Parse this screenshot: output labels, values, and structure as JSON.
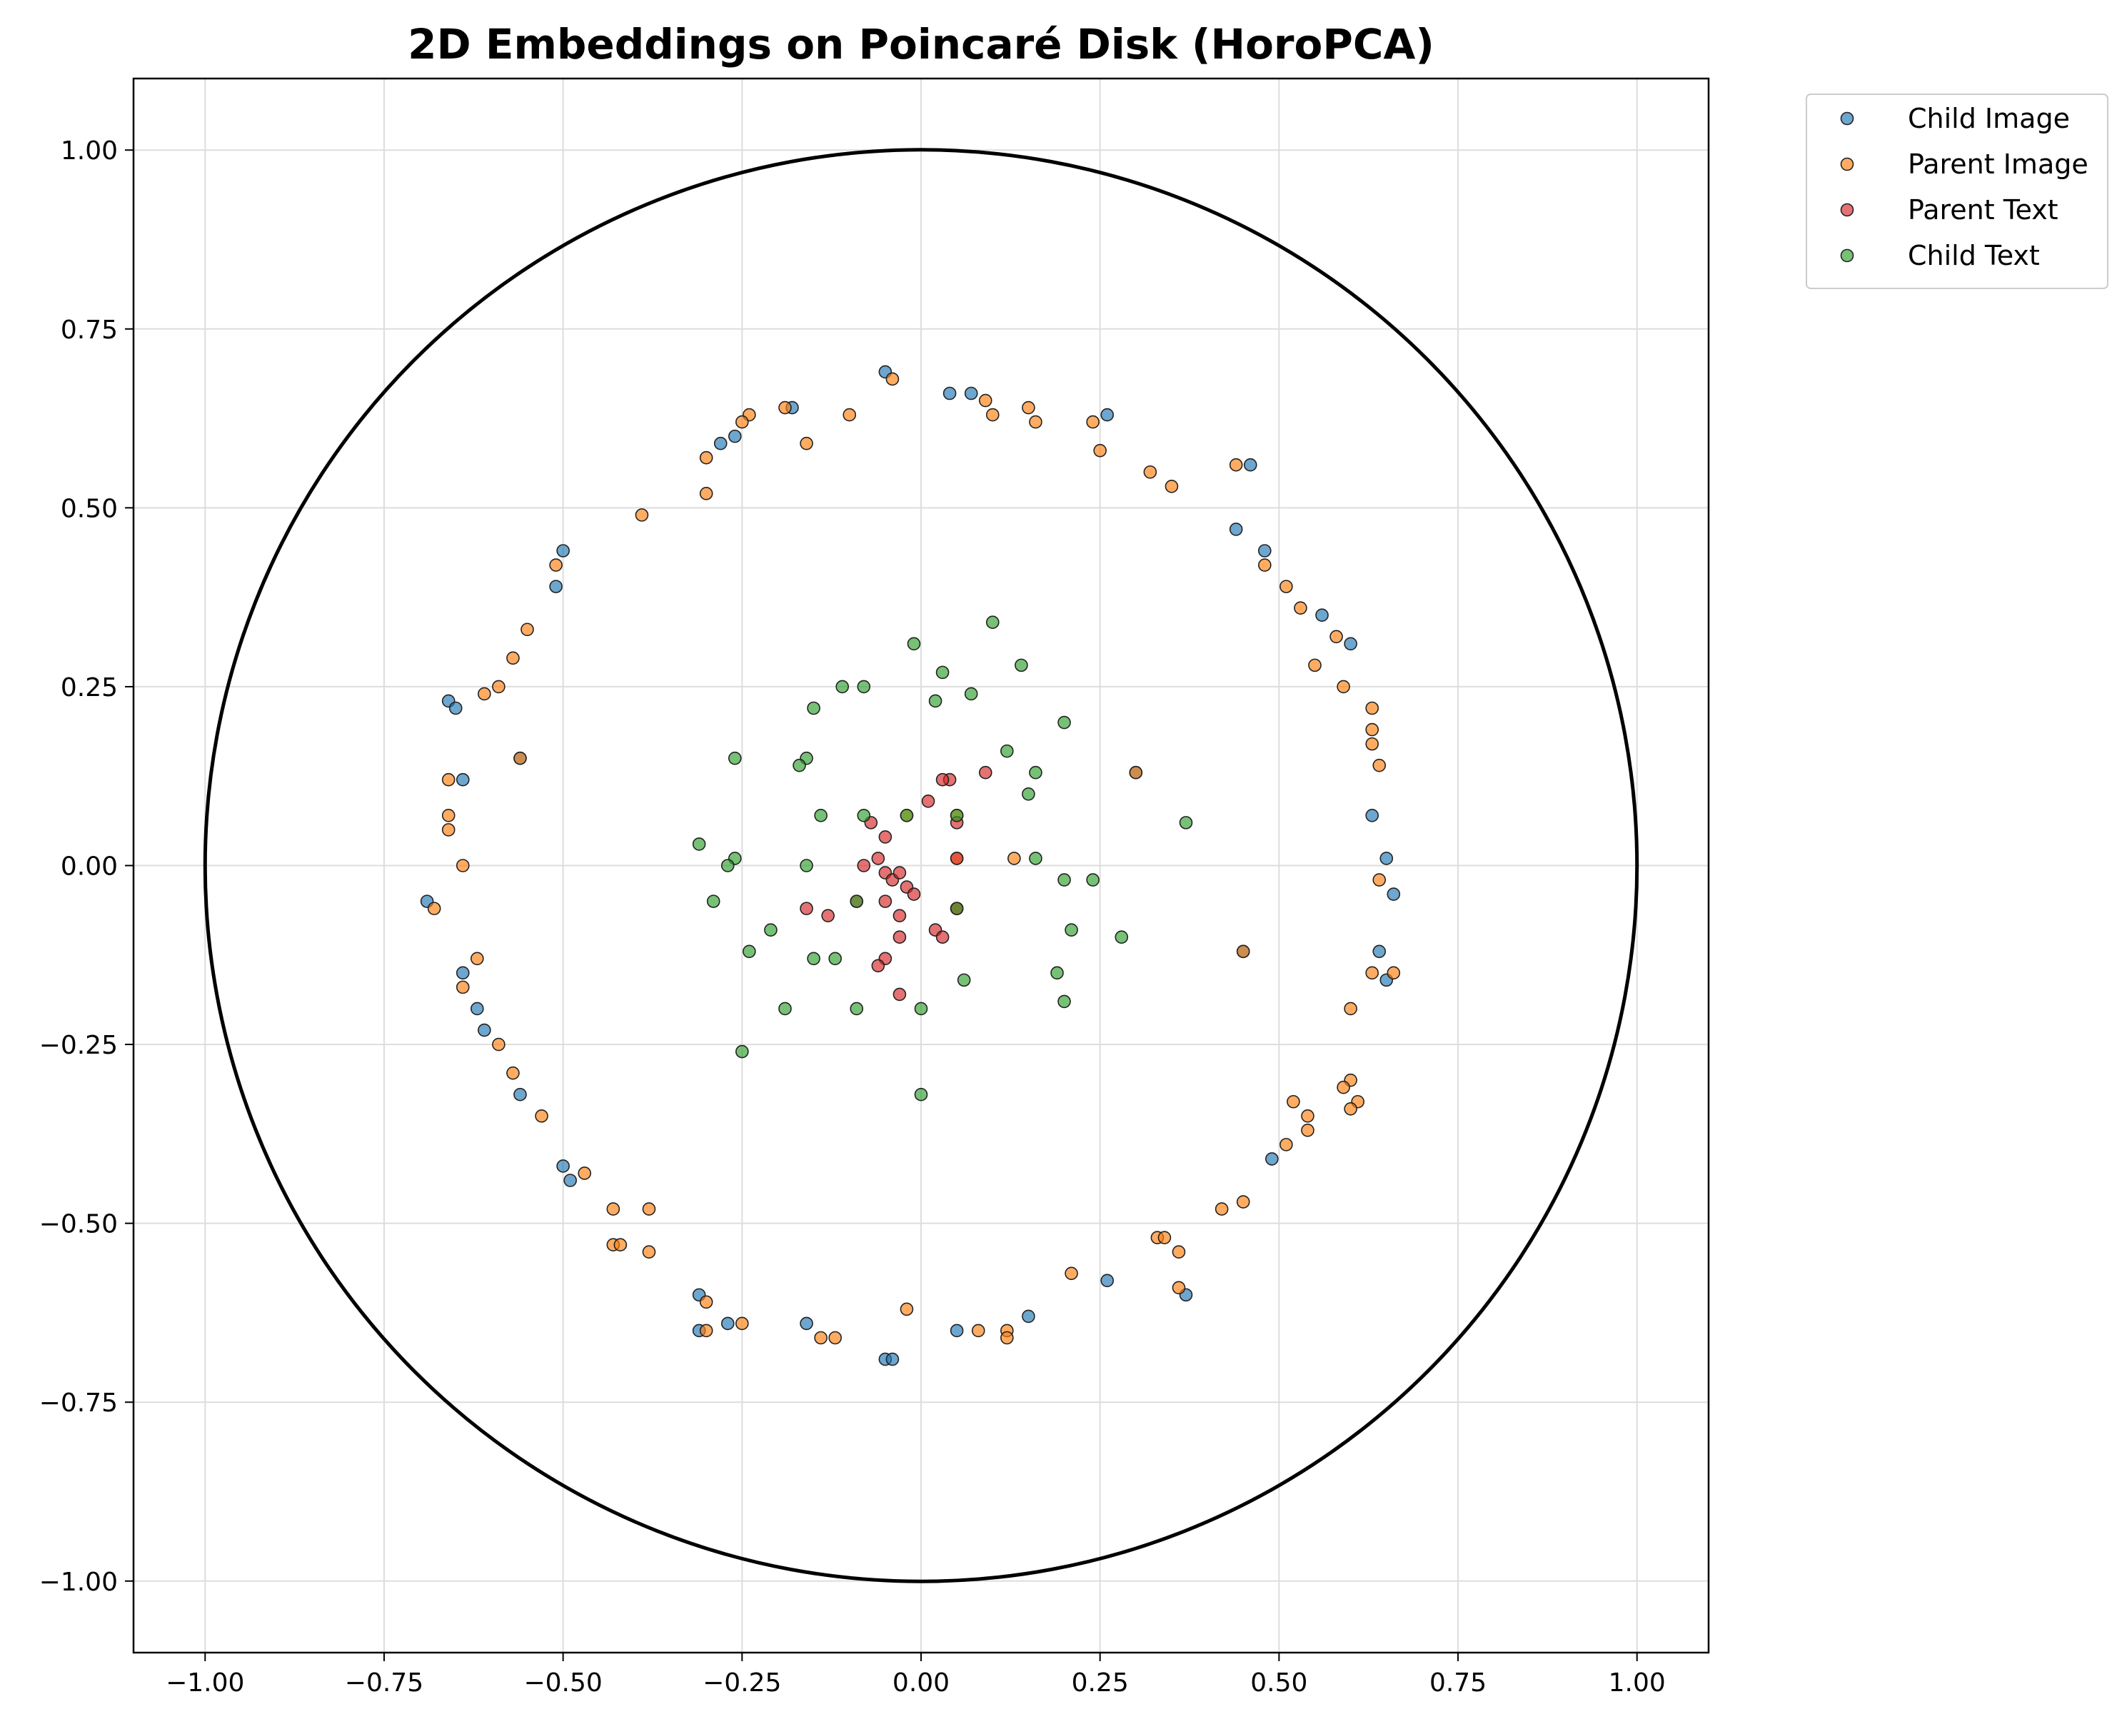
{
  "chart_data": {
    "type": "scatter",
    "title": "2D Embeddings on Poincaré Disk (HoroPCA)",
    "xlabel": "",
    "ylabel": "",
    "xlim": [
      -1.1,
      1.1
    ],
    "ylim": [
      -1.1,
      1.1
    ],
    "xticks": [
      "−1.00",
      "−0.75",
      "−0.50",
      "−0.25",
      "0.00",
      "0.25",
      "0.50",
      "0.75",
      "1.00"
    ],
    "yticks": [
      "1.00",
      "0.75",
      "0.50",
      "0.25",
      "0.00",
      "−0.25",
      "−0.50",
      "−0.75",
      "−1.00"
    ],
    "grid": true,
    "legend_position": "outside top-right",
    "unit_circle": true,
    "series": [
      {
        "name": "Child Image",
        "color": "#1f77b4",
        "points": [
          [
            -0.05,
            0.69
          ],
          [
            0.07,
            0.66
          ],
          [
            0.04,
            0.66
          ],
          [
            0.26,
            0.63
          ],
          [
            -0.18,
            0.64
          ],
          [
            -0.28,
            0.59
          ],
          [
            -0.26,
            0.6
          ],
          [
            0.46,
            0.56
          ],
          [
            0.44,
            0.47
          ],
          [
            0.48,
            0.44
          ],
          [
            -0.5,
            0.44
          ],
          [
            -0.51,
            0.39
          ],
          [
            0.56,
            0.35
          ],
          [
            0.6,
            0.31
          ],
          [
            -0.66,
            0.23
          ],
          [
            -0.65,
            0.22
          ],
          [
            -0.56,
            0.15
          ],
          [
            -0.64,
            0.12
          ],
          [
            0.63,
            0.07
          ],
          [
            0.65,
            0.01
          ],
          [
            0.66,
            -0.04
          ],
          [
            -0.69,
            -0.05
          ],
          [
            0.45,
            -0.12
          ],
          [
            0.64,
            -0.12
          ],
          [
            0.65,
            -0.16
          ],
          [
            -0.64,
            -0.15
          ],
          [
            -0.62,
            -0.2
          ],
          [
            -0.61,
            -0.23
          ],
          [
            -0.56,
            -0.32
          ],
          [
            0.49,
            -0.41
          ],
          [
            -0.5,
            -0.42
          ],
          [
            -0.49,
            -0.44
          ],
          [
            0.26,
            -0.58
          ],
          [
            0.37,
            -0.6
          ],
          [
            -0.31,
            -0.6
          ],
          [
            -0.31,
            -0.65
          ],
          [
            -0.27,
            -0.64
          ],
          [
            -0.16,
            -0.64
          ],
          [
            0.15,
            -0.63
          ],
          [
            0.05,
            -0.65
          ],
          [
            -0.05,
            -0.69
          ],
          [
            -0.04,
            -0.69
          ],
          [
            0.3,
            0.13
          ]
        ]
      },
      {
        "name": "Parent Image",
        "color": "#ff7f0e",
        "points": [
          [
            -0.04,
            0.68
          ],
          [
            0.09,
            0.65
          ],
          [
            0.1,
            0.63
          ],
          [
            0.15,
            0.64
          ],
          [
            0.16,
            0.62
          ],
          [
            0.24,
            0.62
          ],
          [
            -0.19,
            0.64
          ],
          [
            -0.24,
            0.63
          ],
          [
            -0.25,
            0.62
          ],
          [
            -0.1,
            0.63
          ],
          [
            -0.16,
            0.59
          ],
          [
            -0.3,
            0.57
          ],
          [
            0.25,
            0.58
          ],
          [
            -0.3,
            0.52
          ],
          [
            0.32,
            0.55
          ],
          [
            0.35,
            0.53
          ],
          [
            0.44,
            0.56
          ],
          [
            -0.39,
            0.49
          ],
          [
            -0.51,
            0.42
          ],
          [
            0.48,
            0.42
          ],
          [
            0.51,
            0.39
          ],
          [
            0.53,
            0.36
          ],
          [
            -0.55,
            0.33
          ],
          [
            0.58,
            0.32
          ],
          [
            0.55,
            0.28
          ],
          [
            -0.57,
            0.29
          ],
          [
            -0.59,
            0.25
          ],
          [
            0.59,
            0.25
          ],
          [
            -0.61,
            0.24
          ],
          [
            0.63,
            0.22
          ],
          [
            0.63,
            0.19
          ],
          [
            0.63,
            0.17
          ],
          [
            0.64,
            0.14
          ],
          [
            -0.56,
            0.15
          ],
          [
            -0.66,
            0.12
          ],
          [
            0.3,
            0.13
          ],
          [
            -0.66,
            0.07
          ],
          [
            -0.66,
            0.05
          ],
          [
            -0.64,
            0.0
          ],
          [
            0.05,
            0.01
          ],
          [
            0.13,
            0.01
          ],
          [
            0.64,
            -0.02
          ],
          [
            -0.68,
            -0.06
          ],
          [
            0.45,
            -0.12
          ],
          [
            0.63,
            -0.15
          ],
          [
            0.66,
            -0.15
          ],
          [
            -0.62,
            -0.13
          ],
          [
            -0.64,
            -0.17
          ],
          [
            0.6,
            -0.2
          ],
          [
            -0.59,
            -0.25
          ],
          [
            -0.57,
            -0.29
          ],
          [
            0.6,
            -0.3
          ],
          [
            0.59,
            -0.31
          ],
          [
            0.61,
            -0.33
          ],
          [
            0.6,
            -0.34
          ],
          [
            0.52,
            -0.33
          ],
          [
            0.54,
            -0.35
          ],
          [
            0.54,
            -0.37
          ],
          [
            -0.53,
            -0.35
          ],
          [
            0.51,
            -0.39
          ],
          [
            -0.47,
            -0.43
          ],
          [
            0.45,
            -0.47
          ],
          [
            0.42,
            -0.48
          ],
          [
            -0.43,
            -0.48
          ],
          [
            -0.38,
            -0.48
          ],
          [
            0.33,
            -0.52
          ],
          [
            0.34,
            -0.52
          ],
          [
            0.36,
            -0.54
          ],
          [
            -0.43,
            -0.53
          ],
          [
            -0.42,
            -0.53
          ],
          [
            -0.38,
            -0.54
          ],
          [
            0.21,
            -0.57
          ],
          [
            0.36,
            -0.59
          ],
          [
            -0.3,
            -0.61
          ],
          [
            -0.02,
            -0.62
          ],
          [
            -0.25,
            -0.64
          ],
          [
            0.12,
            -0.65
          ],
          [
            0.08,
            -0.65
          ],
          [
            0.12,
            -0.66
          ],
          [
            -0.3,
            -0.65
          ],
          [
            -0.14,
            -0.66
          ],
          [
            -0.12,
            -0.66
          ],
          [
            0.05,
            -0.06
          ],
          [
            -0.02,
            0.07
          ],
          [
            0.05,
            0.07
          ]
        ]
      },
      {
        "name": "Parent Text",
        "color": "#d62728",
        "points": [
          [
            0.09,
            0.13
          ],
          [
            0.04,
            0.12
          ],
          [
            0.03,
            0.12
          ],
          [
            0.01,
            0.09
          ],
          [
            -0.07,
            0.06
          ],
          [
            -0.05,
            0.04
          ],
          [
            -0.06,
            0.01
          ],
          [
            -0.08,
            0.0
          ],
          [
            -0.05,
            -0.01
          ],
          [
            -0.04,
            -0.02
          ],
          [
            -0.03,
            -0.01
          ],
          [
            -0.02,
            -0.03
          ],
          [
            -0.01,
            -0.04
          ],
          [
            -0.05,
            -0.05
          ],
          [
            -0.09,
            -0.05
          ],
          [
            -0.16,
            -0.06
          ],
          [
            -0.13,
            -0.07
          ],
          [
            -0.03,
            -0.07
          ],
          [
            0.02,
            -0.09
          ],
          [
            -0.03,
            -0.1
          ],
          [
            0.03,
            -0.1
          ],
          [
            -0.05,
            -0.13
          ],
          [
            -0.06,
            -0.14
          ],
          [
            -0.03,
            -0.18
          ],
          [
            0.05,
            0.06
          ],
          [
            0.05,
            0.01
          ],
          [
            0.05,
            -0.06
          ]
        ]
      },
      {
        "name": "Child Text",
        "color": "#2ca02c",
        "points": [
          [
            -0.01,
            0.31
          ],
          [
            0.1,
            0.34
          ],
          [
            0.03,
            0.27
          ],
          [
            0.14,
            0.28
          ],
          [
            -0.11,
            0.25
          ],
          [
            -0.08,
            0.25
          ],
          [
            0.02,
            0.23
          ],
          [
            0.07,
            0.24
          ],
          [
            -0.15,
            0.22
          ],
          [
            0.2,
            0.2
          ],
          [
            0.12,
            0.16
          ],
          [
            -0.26,
            0.15
          ],
          [
            -0.16,
            0.15
          ],
          [
            -0.17,
            0.14
          ],
          [
            0.16,
            0.13
          ],
          [
            0.15,
            0.1
          ],
          [
            0.37,
            0.06
          ],
          [
            -0.14,
            0.07
          ],
          [
            -0.08,
            0.07
          ],
          [
            -0.02,
            0.07
          ],
          [
            0.05,
            0.07
          ],
          [
            -0.31,
            0.03
          ],
          [
            -0.26,
            0.01
          ],
          [
            -0.27,
            0.0
          ],
          [
            -0.16,
            0.0
          ],
          [
            0.16,
            0.01
          ],
          [
            0.2,
            -0.02
          ],
          [
            0.24,
            -0.02
          ],
          [
            -0.29,
            -0.05
          ],
          [
            -0.09,
            -0.05
          ],
          [
            0.05,
            -0.06
          ],
          [
            -0.21,
            -0.09
          ],
          [
            0.21,
            -0.09
          ],
          [
            0.28,
            -0.1
          ],
          [
            -0.24,
            -0.12
          ],
          [
            -0.15,
            -0.13
          ],
          [
            -0.12,
            -0.13
          ],
          [
            0.19,
            -0.15
          ],
          [
            0.06,
            -0.16
          ],
          [
            0.2,
            -0.19
          ],
          [
            -0.19,
            -0.2
          ],
          [
            -0.09,
            -0.2
          ],
          [
            0.0,
            -0.2
          ],
          [
            -0.25,
            -0.26
          ],
          [
            0.0,
            -0.32
          ]
        ]
      }
    ]
  }
}
